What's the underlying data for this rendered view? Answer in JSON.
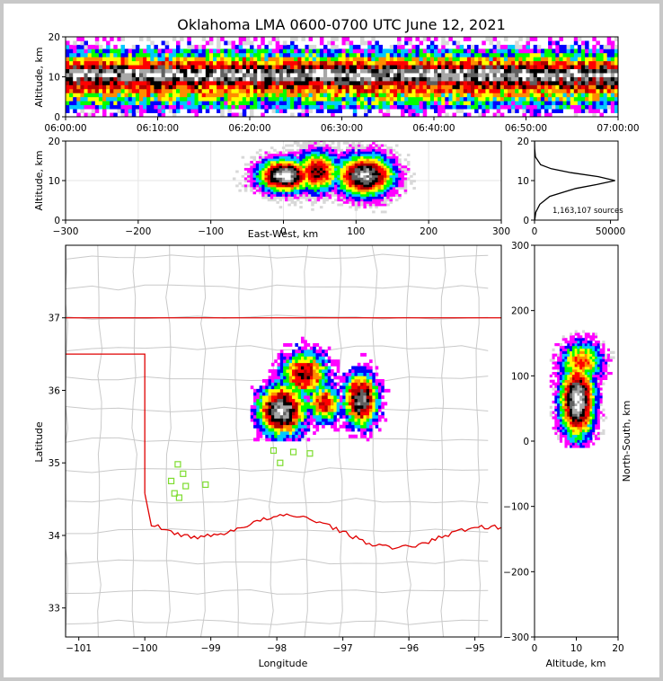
{
  "chart_data": {
    "title": "Oklahoma LMA 0600-0700 UTC June 12, 2021",
    "panels": [
      {
        "id": "time-height",
        "type": "heatmap",
        "xlabel": "",
        "ylabel": "Altitude, km",
        "xticks": [
          "06:00:00",
          "06:10:00",
          "06:20:00",
          "06:30:00",
          "06:40:00",
          "06:50:00",
          "07:00:00"
        ],
        "xlim_minutes": [
          0,
          60
        ],
        "ylim": [
          0,
          20
        ],
        "yticks": [
          0,
          10,
          20
        ],
        "density_rows": [
          {
            "alt": 0.5,
            "level": 0.08
          },
          {
            "alt": 1.5,
            "level": 0.15
          },
          {
            "alt": 2.5,
            "level": 0.25
          },
          {
            "alt": 3.5,
            "level": 0.32
          },
          {
            "alt": 4.5,
            "level": 0.4
          },
          {
            "alt": 5.5,
            "level": 0.46
          },
          {
            "alt": 6.5,
            "level": 0.55
          },
          {
            "alt": 7.5,
            "level": 0.62
          },
          {
            "alt": 8.5,
            "level": 0.72
          },
          {
            "alt": 9.5,
            "level": 0.85
          },
          {
            "alt": 10.5,
            "level": 0.93
          },
          {
            "alt": 11.5,
            "level": 0.88
          },
          {
            "alt": 12.5,
            "level": 0.7
          },
          {
            "alt": 13.5,
            "level": 0.58
          },
          {
            "alt": 14.5,
            "level": 0.45
          },
          {
            "alt": 15.5,
            "level": 0.35
          },
          {
            "alt": 16.5,
            "level": 0.26
          },
          {
            "alt": 17.5,
            "level": 0.17
          },
          {
            "alt": 18.5,
            "level": 0.1
          },
          {
            "alt": 19.5,
            "level": 0.05
          }
        ]
      },
      {
        "id": "east-west-altitude",
        "type": "heatmap",
        "xlabel": "East-West, km",
        "ylabel": "Altitude, km",
        "xlim": [
          -300,
          300
        ],
        "xticks": [
          -300,
          -200,
          -100,
          0,
          100,
          200,
          300
        ],
        "ylim": [
          0,
          20
        ],
        "yticks": [
          0,
          10,
          20
        ],
        "cores": [
          {
            "x": 0,
            "alt": 11,
            "x_spread": 35,
            "alt_spread": 4,
            "level": 1.0
          },
          {
            "x": 45,
            "alt": 12,
            "x_spread": 30,
            "alt_spread": 5,
            "level": 0.75
          },
          {
            "x": 110,
            "alt": 11,
            "x_spread": 38,
            "alt_spread": 5,
            "level": 0.95
          }
        ]
      },
      {
        "id": "altitude-histogram",
        "type": "line",
        "xlim": [
          0,
          55000
        ],
        "xticks": [
          0,
          50000
        ],
        "ylim": [
          0,
          20
        ],
        "yticks": [
          0,
          10,
          20
        ],
        "annotation": "1,163,107 sources",
        "profile": [
          {
            "alt": 0,
            "count": 100
          },
          {
            "alt": 2,
            "count": 800
          },
          {
            "alt": 4,
            "count": 3500
          },
          {
            "alt": 6,
            "count": 10000
          },
          {
            "alt": 8,
            "count": 27000
          },
          {
            "alt": 9,
            "count": 41000
          },
          {
            "alt": 10,
            "count": 53000
          },
          {
            "alt": 11,
            "count": 42000
          },
          {
            "alt": 12,
            "count": 24000
          },
          {
            "alt": 13,
            "count": 11000
          },
          {
            "alt": 14,
            "count": 4000
          },
          {
            "alt": 16,
            "count": 600
          },
          {
            "alt": 18,
            "count": 100
          },
          {
            "alt": 20,
            "count": 0
          }
        ]
      },
      {
        "id": "plan-view",
        "type": "scatter",
        "xlabel": "Longitude",
        "ylabel": "Latitude",
        "xlim": [
          -101.2,
          -94.6
        ],
        "ylim": [
          32.6,
          38.0
        ],
        "xticks": [
          -101,
          -100,
          -99,
          -98,
          -97,
          -96,
          -95
        ],
        "yticks": [
          33,
          34,
          35,
          36,
          37
        ],
        "cores": [
          {
            "lon": -97.95,
            "lat": 35.7,
            "lon_spread": 0.35,
            "lat_spread": 0.35,
            "level": 0.95
          },
          {
            "lon": -97.6,
            "lat": 36.2,
            "lon_spread": 0.35,
            "lat_spread": 0.3,
            "level": 0.75
          },
          {
            "lon": -97.3,
            "lat": 35.8,
            "lon_spread": 0.25,
            "lat_spread": 0.25,
            "level": 0.7
          },
          {
            "lon": -96.75,
            "lat": 35.85,
            "lon_spread": 0.25,
            "lat_spread": 0.35,
            "level": 0.9
          }
        ],
        "stations": [
          [
            -99.5,
            34.98
          ],
          [
            -99.42,
            34.85
          ],
          [
            -99.6,
            34.75
          ],
          [
            -99.38,
            34.68
          ],
          [
            -99.55,
            34.58
          ],
          [
            -99.48,
            34.52
          ],
          [
            -99.08,
            34.7
          ],
          [
            -97.95,
            35.0
          ],
          [
            -97.75,
            35.15
          ],
          [
            -97.5,
            35.13
          ],
          [
            -98.05,
            35.17
          ]
        ]
      },
      {
        "id": "altitude-north-south",
        "type": "heatmap",
        "xlabel": "Altitude, km",
        "ylabel": "North-South, km",
        "xlim": [
          0,
          20
        ],
        "xticks": [
          0,
          10,
          20
        ],
        "ylim": [
          -300,
          300
        ],
        "yticks": [
          -300,
          -200,
          -100,
          0,
          100,
          200,
          300
        ],
        "cores": [
          {
            "alt": 10,
            "ns": 60,
            "alt_spread": 4,
            "ns_spread": 55,
            "level": 1.0
          },
          {
            "alt": 11,
            "ns": 120,
            "alt_spread": 5,
            "ns_spread": 30,
            "level": 0.6
          }
        ]
      }
    ]
  }
}
